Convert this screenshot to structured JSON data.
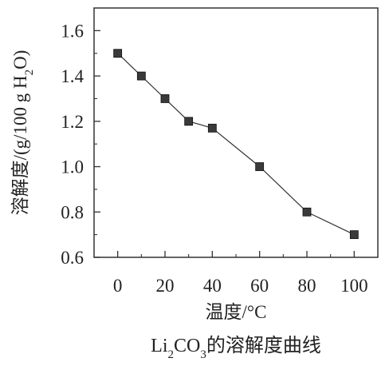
{
  "chart_data": {
    "type": "line",
    "title": "",
    "caption": {
      "prefix": "Li",
      "sub1": "2",
      "middle": "CO",
      "sub2": "3",
      "suffix": "的溶解度曲线"
    },
    "xlabel": "温度/°C",
    "ylabel": {
      "main": "溶解度/(g/100 g H",
      "sub": "2",
      "end": "O)"
    },
    "xlim": [
      -10,
      110
    ],
    "ylim": [
      0.6,
      1.7
    ],
    "xticks": [
      0,
      20,
      40,
      60,
      80,
      100
    ],
    "xtick_labels": [
      "0",
      "20",
      "40",
      "60",
      "80",
      "100"
    ],
    "yticks": [
      0.6,
      0.8,
      1.0,
      1.2,
      1.4,
      1.6
    ],
    "ytick_labels": [
      "0.6",
      "0.8",
      "1.0",
      "1.2",
      "1.4",
      "1.6"
    ],
    "grid": false,
    "marker": "square",
    "series": [
      {
        "x": [
          0,
          10,
          20,
          30,
          40,
          60,
          80,
          100
        ],
        "y": [
          1.5,
          1.4,
          1.3,
          1.2,
          1.17,
          1.0,
          0.8,
          0.7
        ]
      }
    ],
    "colors": {
      "line": "#333333",
      "marker": "#3a3a3a",
      "axis": "#333333"
    }
  }
}
